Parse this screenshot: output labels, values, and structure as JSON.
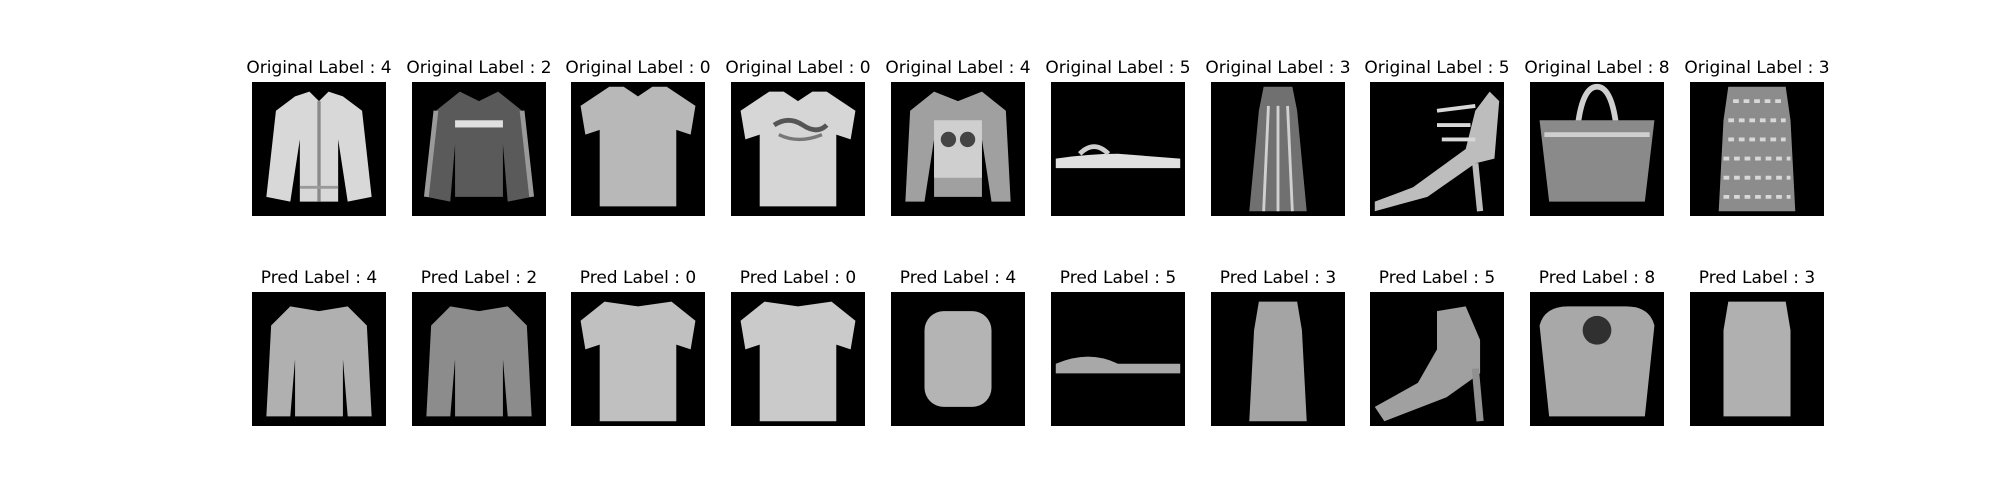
{
  "figure": {
    "rows": [
      {
        "name": "original",
        "items": [
          {
            "title": "Original Label : 4",
            "icon": "jacket-icon"
          },
          {
            "title": "Original Label : 2",
            "icon": "hoodie-icon"
          },
          {
            "title": "Original Label : 0",
            "icon": "tshirt-icon"
          },
          {
            "title": "Original Label : 0",
            "icon": "tshirt-print-icon"
          },
          {
            "title": "Original Label : 4",
            "icon": "coat-icon"
          },
          {
            "title": "Original Label : 5",
            "icon": "sandal-icon"
          },
          {
            "title": "Original Label : 3",
            "icon": "dress-icon"
          },
          {
            "title": "Original Label : 5",
            "icon": "heel-icon"
          },
          {
            "title": "Original Label : 8",
            "icon": "bag-icon"
          },
          {
            "title": "Original Label : 3",
            "icon": "dress-pattern-icon"
          }
        ]
      },
      {
        "name": "prediction",
        "items": [
          {
            "title": "Pred Label : 4",
            "icon": "jacket-blur-icon"
          },
          {
            "title": "Pred Label : 2",
            "icon": "hoodie-blur-icon"
          },
          {
            "title": "Pred Label : 0",
            "icon": "tshirt-blur-icon"
          },
          {
            "title": "Pred Label : 0",
            "icon": "tshirt-blur-icon"
          },
          {
            "title": "Pred Label : 4",
            "icon": "coat-blur-icon"
          },
          {
            "title": "Pred Label : 5",
            "icon": "sandal-blur-icon"
          },
          {
            "title": "Pred Label : 3",
            "icon": "dress-blur-icon"
          },
          {
            "title": "Pred Label : 5",
            "icon": "heel-blur-icon"
          },
          {
            "title": "Pred Label : 8",
            "icon": "bag-blur-icon"
          },
          {
            "title": "Pred Label : 3",
            "icon": "dress-blur-icon"
          }
        ]
      }
    ]
  }
}
